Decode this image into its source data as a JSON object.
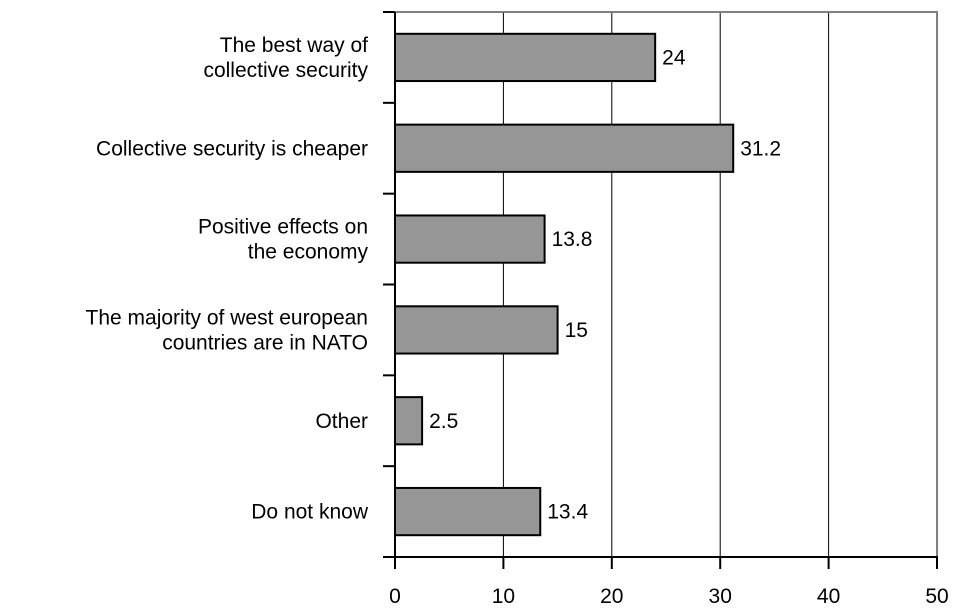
{
  "chart_data": {
    "type": "bar",
    "orientation": "horizontal",
    "title": "",
    "xlabel": "",
    "ylabel": "",
    "categories": [
      [
        "The best way of",
        "collective security"
      ],
      [
        "Collective security is cheaper"
      ],
      [
        "Positive effects on",
        "the economy"
      ],
      [
        "The majority of west european",
        "countries are in NATO"
      ],
      [
        "Other"
      ],
      [
        "Do not know"
      ]
    ],
    "values": [
      24,
      31.2,
      13.8,
      15,
      2.5,
      13.4
    ],
    "value_labels": [
      "24",
      "31.2",
      "13.8",
      "15",
      "2.5",
      "13.4"
    ],
    "xlim": [
      0,
      50
    ],
    "xticks": [
      0,
      10,
      20,
      30,
      40,
      50
    ],
    "xtick_labels": [
      "0",
      "10",
      "20",
      "30",
      "40",
      "50"
    ],
    "grid": "vertical",
    "legend": "none",
    "colors": {
      "bar_fill": "#969696",
      "bar_edge": "#000000",
      "frame": "#808080"
    }
  }
}
